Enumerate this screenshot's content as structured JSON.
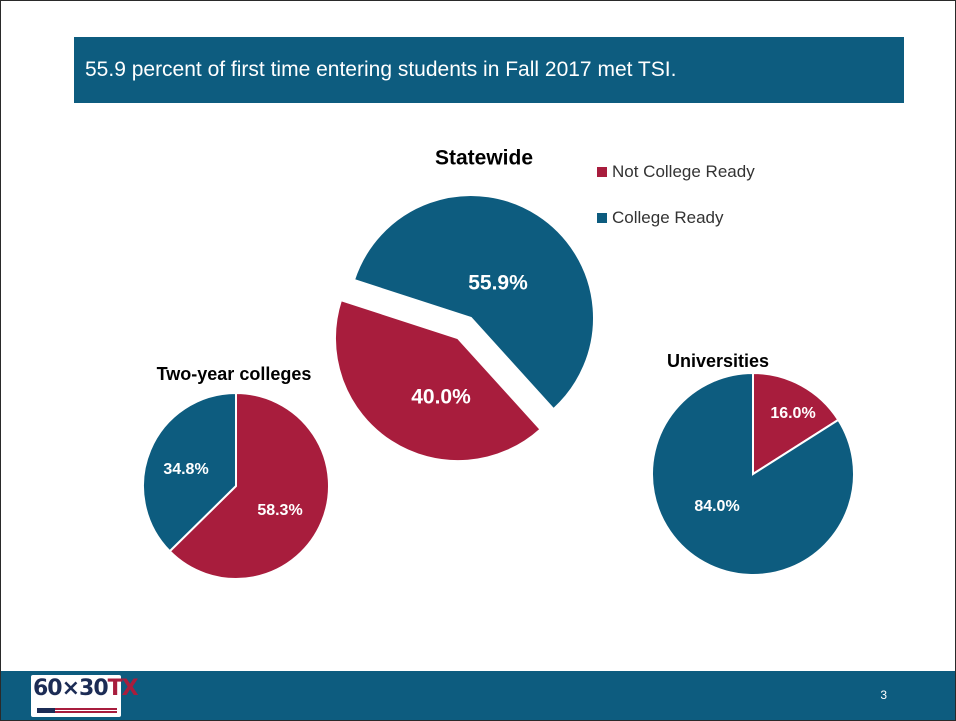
{
  "slide": {
    "title": "55.9 percent of first time entering students in Fall 2017 met TSI.",
    "page_number": "3",
    "logo_text_main": "60×30",
    "logo_text_tx": "TX"
  },
  "colors": {
    "not_college_ready": "#a81d3d",
    "college_ready": "#0d5c7f"
  },
  "legend": [
    {
      "label": "Not College Ready",
      "color": "#a81d3d"
    },
    {
      "label": "College Ready",
      "color": "#0d5c7f"
    }
  ],
  "chart_data": [
    {
      "type": "pie",
      "title": "Statewide",
      "slices": [
        {
          "name": "College Ready",
          "value": 55.9,
          "label": "55.9%"
        },
        {
          "name": "Not College Ready",
          "value": 40.0,
          "label": "40.0%"
        }
      ]
    },
    {
      "type": "pie",
      "title": "Two-year colleges",
      "slices": [
        {
          "name": "Not College Ready",
          "value": 58.3,
          "label": "58.3%"
        },
        {
          "name": "College Ready",
          "value": 34.8,
          "label": "34.8%"
        }
      ]
    },
    {
      "type": "pie",
      "title": "Universities",
      "slices": [
        {
          "name": "Not College Ready",
          "value": 16.0,
          "label": "16.0%"
        },
        {
          "name": "College Ready",
          "value": 84.0,
          "label": "84.0%"
        }
      ]
    }
  ]
}
